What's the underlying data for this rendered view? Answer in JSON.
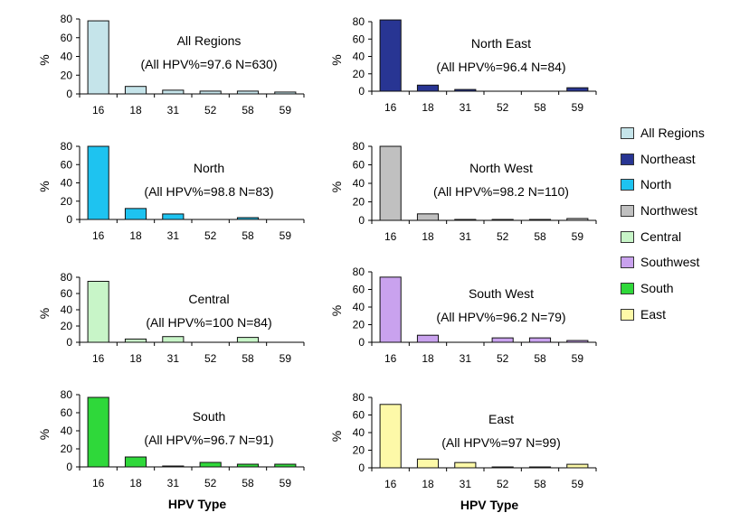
{
  "chart_data": [
    {
      "type": "bar",
      "title": "All Regions",
      "subtitle": "(All HPV%=97.6 N=630)",
      "categories": [
        "16",
        "18",
        "31",
        "52",
        "58",
        "59"
      ],
      "values": [
        78,
        8,
        4,
        3,
        3,
        2
      ],
      "ylabel": "%",
      "xlabel": "",
      "ylim": [
        0,
        80
      ],
      "yticks": [
        "0",
        "20",
        "40",
        "60",
        "80"
      ],
      "color": "#c5e4ea"
    },
    {
      "type": "bar",
      "title": "North East",
      "subtitle": "(All HPV%=96.4 N=84)",
      "categories": [
        "16",
        "18",
        "31",
        "52",
        "58",
        "59"
      ],
      "values": [
        82,
        7,
        2,
        0,
        0,
        4
      ],
      "ylabel": "%",
      "xlabel": "",
      "ylim": [
        0,
        80
      ],
      "yticks": [
        "0",
        "20",
        "40",
        "60",
        "80"
      ],
      "color": "#283593"
    },
    {
      "type": "bar",
      "title": "North",
      "subtitle": "(All HPV%=98.8 N=83)",
      "categories": [
        "16",
        "18",
        "31",
        "52",
        "58",
        "59"
      ],
      "values": [
        80,
        12,
        6,
        0,
        2,
        0
      ],
      "ylabel": "%",
      "xlabel": "",
      "ylim": [
        0,
        80
      ],
      "yticks": [
        "0",
        "20",
        "40",
        "60",
        "80"
      ],
      "color": "#1ec3f0"
    },
    {
      "type": "bar",
      "title": "North West",
      "subtitle": "(All HPV%=98.2 N=110)",
      "categories": [
        "16",
        "18",
        "31",
        "52",
        "58",
        "59"
      ],
      "values": [
        80,
        7,
        1,
        1,
        1,
        2
      ],
      "ylabel": "%",
      "xlabel": "",
      "ylim": [
        0,
        80
      ],
      "yticks": [
        "0",
        "20",
        "40",
        "60",
        "80"
      ],
      "color": "#c0c0c0"
    },
    {
      "type": "bar",
      "title": "Central",
      "subtitle": "(All HPV%=100 N=84)",
      "categories": [
        "16",
        "18",
        "31",
        "52",
        "58",
        "59"
      ],
      "values": [
        75,
        4,
        7,
        0,
        6,
        0
      ],
      "ylabel": "%",
      "xlabel": "",
      "ylim": [
        0,
        80
      ],
      "yticks": [
        "0",
        "20",
        "40",
        "60",
        "80"
      ],
      "color": "#c8f5c8"
    },
    {
      "type": "bar",
      "title": "South West",
      "subtitle": "(All HPV%=96.2 N=79)",
      "categories": [
        "16",
        "18",
        "31",
        "52",
        "58",
        "59"
      ],
      "values": [
        74,
        8,
        0,
        5,
        5,
        2
      ],
      "ylabel": "%",
      "xlabel": "",
      "ylim": [
        0,
        80
      ],
      "yticks": [
        "0",
        "20",
        "40",
        "60",
        "80"
      ],
      "color": "#c9a2ee"
    },
    {
      "type": "bar",
      "title": "South",
      "subtitle": "(All HPV%=96.7 N=91)",
      "categories": [
        "16",
        "18",
        "31",
        "52",
        "58",
        "59"
      ],
      "values": [
        77,
        11,
        1,
        5,
        3,
        3
      ],
      "ylabel": "%",
      "xlabel": "HPV Type",
      "ylim": [
        0,
        80
      ],
      "yticks": [
        "0",
        "20",
        "40",
        "60",
        "80"
      ],
      "color": "#2fd83a"
    },
    {
      "type": "bar",
      "title": "East",
      "subtitle": "(All HPV%=97 N=99)",
      "categories": [
        "16",
        "18",
        "31",
        "52",
        "58",
        "59"
      ],
      "values": [
        72,
        10,
        6,
        1,
        1,
        4
      ],
      "ylabel": "%",
      "xlabel": "HPV Type",
      "ylim": [
        0,
        80
      ],
      "yticks": [
        "0",
        "20",
        "40",
        "60",
        "80"
      ],
      "color": "#fdf9a8"
    }
  ],
  "legend": [
    {
      "label": "All Regions",
      "color": "#c5e4ea"
    },
    {
      "label": "Northeast",
      "color": "#283593"
    },
    {
      "label": "North",
      "color": "#1ec3f0"
    },
    {
      "label": "Northwest",
      "color": "#c0c0c0"
    },
    {
      "label": "Central",
      "color": "#c8f5c8"
    },
    {
      "label": "Southwest",
      "color": "#c9a2ee"
    },
    {
      "label": "South",
      "color": "#2fd83a"
    },
    {
      "label": "East",
      "color": "#fdf9a8"
    }
  ]
}
